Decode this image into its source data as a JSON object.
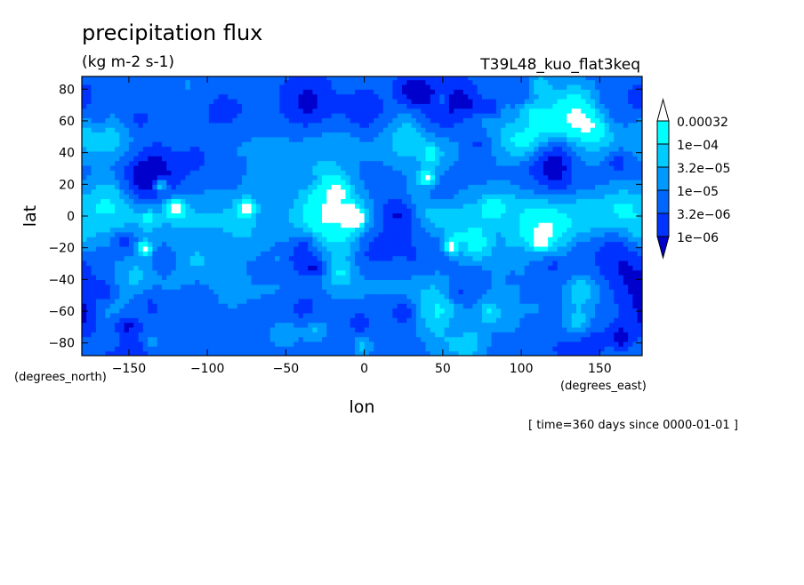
{
  "chart_data": {
    "type": "heatmap",
    "title": "precipitation flux",
    "units": "(kg m-2 s-1)",
    "dataset": "T39L48_kuo_flat3keq",
    "xlabel": "lon",
    "ylabel": "lat",
    "x_units": "(degrees_east)",
    "y_units": "(degrees_north)",
    "xlim": [
      -180,
      177
    ],
    "ylim": [
      -88,
      88
    ],
    "x_ticks": [
      -150,
      -100,
      -50,
      0,
      50,
      100,
      150
    ],
    "y_ticks": [
      80,
      60,
      40,
      20,
      0,
      -20,
      -40,
      -60,
      -80
    ],
    "time_note": "[ time=360 days since 0000-01-01 ]",
    "legend": {
      "placement": "right",
      "labels": [
        "0.00032",
        "1e-04",
        "3.2e-05",
        "1e-05",
        "3.2e-06",
        "1e-06"
      ],
      "colors": [
        "#ffffff",
        "#00ffff",
        "#00ccff",
        "#0099ff",
        "#0066ff",
        "#0033ff",
        "#0000cc"
      ]
    },
    "levels": [
      {
        "name": "<1e-06",
        "color": "#0000cc"
      },
      {
        "name": "1e-06 to 3.2e-06",
        "color": "#0033ff"
      },
      {
        "name": "3.2e-06 to 1e-05",
        "color": "#0066ff"
      },
      {
        "name": "1e-05 to 3.2e-05",
        "color": "#0099ff"
      },
      {
        "name": "3.2e-05 to 1e-04",
        "color": "#00ccff"
      },
      {
        "name": "1e-04 to 0.00032",
        "color": "#00ffff"
      },
      {
        "name": ">0.00032",
        "color": "#ffffff"
      }
    ]
  }
}
